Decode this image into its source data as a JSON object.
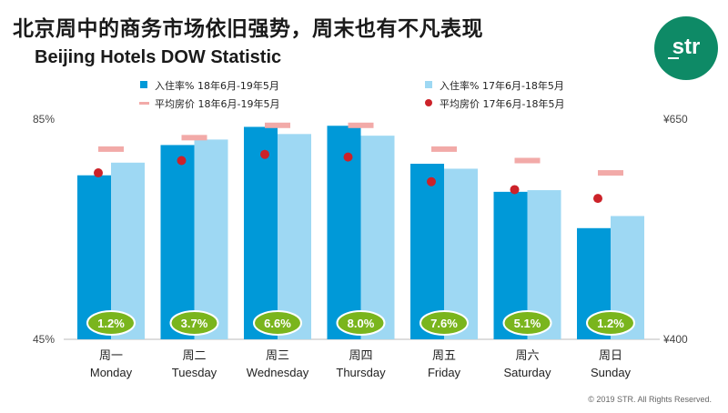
{
  "title_cn": "北京周中的商务市场依旧强势，周末也有不凡表现",
  "title_en": "Beijing Hotels DOW Statistic",
  "logo_text": "str",
  "copyright": "© 2019 STR. All Rights Reserved.",
  "colors": {
    "occ_current": "#0099d8",
    "occ_prior": "#9ed8f3",
    "adr_current": "#f2aaa8",
    "adr_prior": "#cc2229",
    "badge": "#7ab51d",
    "brand": "#0e8a66"
  },
  "chart_data": {
    "type": "bar",
    "title": "Beijing Hotels DOW Statistic",
    "categories_cn": [
      "周一",
      "周二",
      "周三",
      "周四",
      "周五",
      "周六",
      "周日"
    ],
    "categories_en": [
      "Monday",
      "Tuesday",
      "Wednesday",
      "Thursday",
      "Friday",
      "Saturday",
      "Sunday"
    ],
    "y_left": {
      "min": 45,
      "max": 85,
      "ticks": [
        "45%",
        "85%"
      ]
    },
    "y_right": {
      "min": 400,
      "max": 650,
      "ticks": [
        "¥400",
        "¥650"
      ]
    },
    "series": [
      {
        "name": "入住率% 18年6月-19年5月",
        "kind": "bar",
        "axis": "left",
        "values": [
          74.8,
          80.3,
          83.6,
          83.8,
          76.9,
          71.8,
          65.2
        ]
      },
      {
        "name": "入住率% 17年6月-18年5月",
        "kind": "bar",
        "axis": "left",
        "values": [
          77.1,
          81.3,
          82.3,
          82.0,
          76.0,
          72.1,
          67.4
        ]
      },
      {
        "name": "平均房价 18年6月-19年5月",
        "kind": "dash",
        "axis": "right",
        "values": [
          616,
          629,
          643,
          643,
          616,
          603,
          589
        ]
      },
      {
        "name": "平均房价 17年6月-18年5月",
        "kind": "dot",
        "axis": "right",
        "values": [
          589,
          603,
          610,
          607,
          579,
          570,
          560
        ]
      }
    ],
    "growth_labels": [
      "1.2%",
      "3.7%",
      "6.6%",
      "8.0%",
      "7.6%",
      "5.1%",
      "1.2%"
    ],
    "legend_position": "top",
    "grid": false
  }
}
